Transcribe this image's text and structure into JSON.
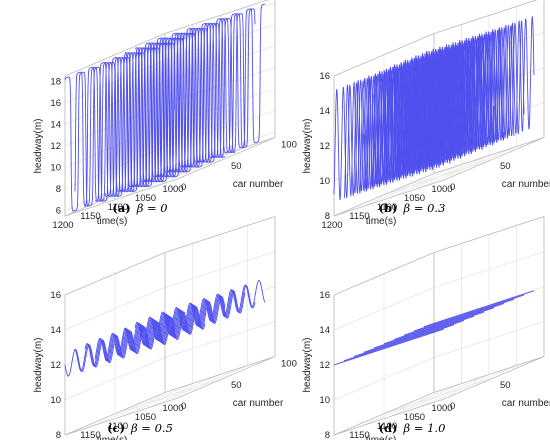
{
  "figure": {
    "panels": [
      {
        "id": "a",
        "caption_label": "(a)",
        "caption_eq": "β = 0",
        "chart_data": {
          "type": "line",
          "mode": "3d-waterfall",
          "xlabel": "time(s)",
          "ylabel": "car number",
          "zlabel": "headway(m)",
          "x_ticks": [
            "1200",
            "1150",
            "1100",
            "1050",
            "1000"
          ],
          "y_ticks": [
            "0",
            "50",
            "100"
          ],
          "z_ticks": [
            "6",
            "8",
            "10",
            "12",
            "14",
            "16",
            "18"
          ],
          "xlim": [
            1000,
            1200
          ],
          "ylim": [
            0,
            100
          ],
          "zlim": [
            5.5,
            18.5
          ],
          "series_cars": [
            0,
            10,
            20,
            30,
            40,
            50,
            60,
            70,
            80,
            90
          ],
          "pattern": {
            "shape": "square-wave",
            "mean": 12,
            "amplitude": 6.3,
            "period_s": 27,
            "phase_shift_per_car": 0.13,
            "x_start": 1000,
            "x_end": 1200
          },
          "line_color": "#5050ee",
          "grid": true
        }
      },
      {
        "id": "b",
        "caption_label": "(b)",
        "caption_eq": "β = 0.3",
        "chart_data": {
          "type": "line",
          "mode": "3d-waterfall",
          "xlabel": "time(s)",
          "ylabel": "car number",
          "zlabel": "headway(m)",
          "x_ticks": [
            "1200",
            "1150",
            "1100",
            "1050",
            "1000"
          ],
          "y_ticks": [
            "0",
            "50",
            "100"
          ],
          "z_ticks": [
            "8",
            "10",
            "12",
            "14",
            "16"
          ],
          "xlim": [
            1000,
            1200
          ],
          "ylim": [
            0,
            100
          ],
          "zlim": [
            8,
            16
          ],
          "series_cars": [
            0,
            10,
            20,
            30,
            40,
            50,
            60,
            70,
            80,
            90
          ],
          "pattern": {
            "shape": "sine",
            "mean": 12,
            "amplitude": 3.2,
            "period_s": 12,
            "phase_shift_per_car": 0.11,
            "x_start": 1000,
            "x_end": 1200
          },
          "line_color": "#5050ee",
          "grid": true
        }
      },
      {
        "id": "c",
        "caption_label": "(c)",
        "caption_eq": "β = 0.5",
        "chart_data": {
          "type": "line",
          "mode": "3d-waterfall",
          "xlabel": "time(s)",
          "ylabel": "car number",
          "zlabel": "headway(m)",
          "x_ticks": [
            "1200",
            "1150",
            "1100",
            "1050",
            "1000"
          ],
          "y_ticks": [
            "0",
            "50",
            "100"
          ],
          "z_ticks": [
            "8",
            "10",
            "12",
            "14",
            "16"
          ],
          "xlim": [
            1000,
            1200
          ],
          "ylim": [
            0,
            100
          ],
          "zlim": [
            8,
            16
          ],
          "series_cars": [
            0,
            10,
            20,
            30,
            40,
            50,
            60,
            70,
            80,
            90
          ],
          "pattern": {
            "shape": "sine",
            "mean": 12,
            "amplitude": 0.7,
            "period_s": 25,
            "phase_shift_per_car": 0.2,
            "x_start": 1000,
            "x_end": 1200
          },
          "line_color": "#5050ee",
          "grid": true
        }
      },
      {
        "id": "d",
        "caption_label": "(d)",
        "caption_eq": "β = 1.0",
        "chart_data": {
          "type": "line",
          "mode": "3d-waterfall",
          "xlabel": "time(s)",
          "ylabel": "car number",
          "zlabel": "headway(m)",
          "x_ticks": [
            "1200",
            "1150",
            "1100",
            "1050",
            "1000"
          ],
          "y_ticks": [
            "0",
            "50",
            "100"
          ],
          "z_ticks": [
            "8",
            "10",
            "12",
            "14",
            "16"
          ],
          "xlim": [
            1000,
            1200
          ],
          "ylim": [
            0,
            100
          ],
          "zlim": [
            8,
            16
          ],
          "series_cars": [
            0,
            10,
            20,
            30,
            40,
            50,
            60,
            70,
            80,
            90
          ],
          "pattern": {
            "shape": "constant",
            "mean": 12,
            "amplitude": 0,
            "period_s": 1,
            "phase_shift_per_car": 0,
            "x_start": 1000,
            "x_end": 1200
          },
          "line_color": "#5050ee",
          "grid": true
        }
      }
    ]
  }
}
